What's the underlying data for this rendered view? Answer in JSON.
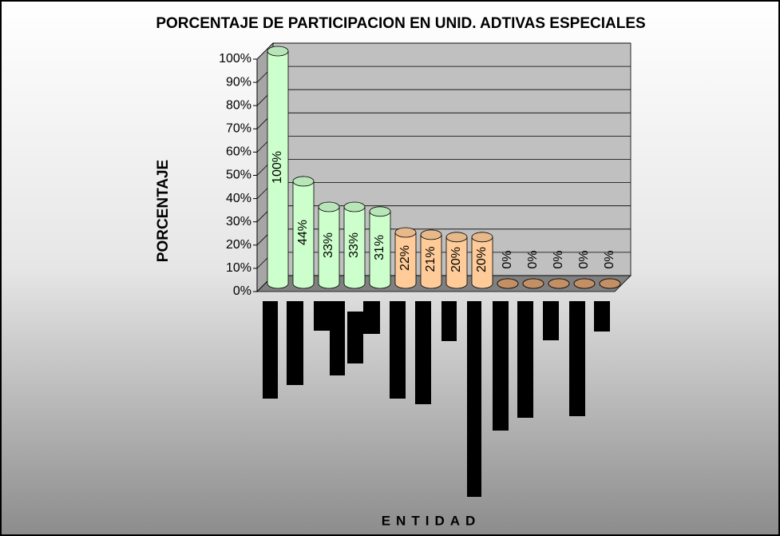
{
  "chart_data": {
    "type": "bar3d",
    "title": "PORCENTAJE DE PARTICIPACION EN UNID. ADTIVAS ESPECIALES",
    "y_label": "PORCENTAJE",
    "x_label": "ENTIDAD",
    "categories": [
      null,
      null,
      null,
      null,
      null,
      null,
      null,
      null,
      null,
      null,
      null,
      null,
      null,
      null
    ],
    "values": [
      100,
      44,
      33,
      33,
      31,
      22,
      21,
      20,
      20,
      0,
      0,
      0,
      0,
      0
    ],
    "value_labels": [
      "100%",
      "44%",
      "33%",
      "33%",
      "31%",
      "22%",
      "21%",
      "20%",
      "20%",
      "0%",
      "0%",
      "0%",
      "0%",
      "0%"
    ],
    "colors": [
      "#ccffcc",
      "#ccffcc",
      "#ccffcc",
      "#ccffcc",
      "#ccffcc",
      "#ffcc99",
      "#ffcc99",
      "#ffcc99",
      "#ffcc99",
      "#d9a070",
      "#d9a070",
      "#d9a070",
      "#d9a070",
      "#d9a070"
    ],
    "ylim": [
      0,
      100
    ],
    "yticks": [
      {
        "value": 0,
        "label": "0%"
      },
      {
        "value": 10,
        "label": "10%"
      },
      {
        "value": 20,
        "label": "20%"
      },
      {
        "value": 30,
        "label": "30%"
      },
      {
        "value": 40,
        "label": "40%"
      },
      {
        "value": 50,
        "label": "50%"
      },
      {
        "value": 60,
        "label": "60%"
      },
      {
        "value": 70,
        "label": "70%"
      },
      {
        "value": 80,
        "label": "80%"
      },
      {
        "value": 90,
        "label": "90%"
      },
      {
        "value": 100,
        "label": "100%"
      }
    ],
    "grid": true
  }
}
